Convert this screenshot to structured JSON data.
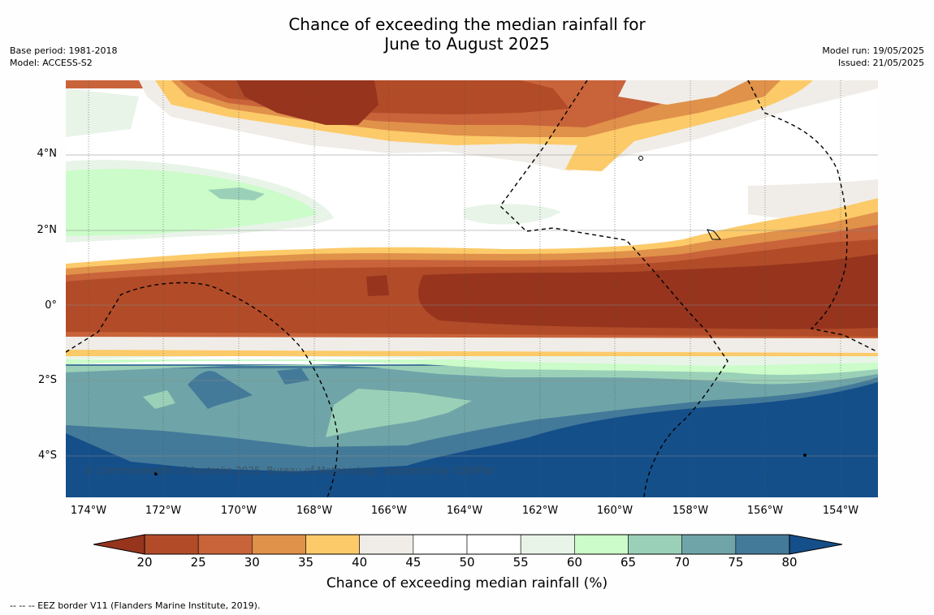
{
  "title": {
    "line1": "Chance of exceeding the median rainfall for",
    "line2": "June to August 2025"
  },
  "meta_left": {
    "base_period": "Base period: 1981-2018",
    "model": "Model: ACCESS-S2"
  },
  "meta_right": {
    "model_run": "Model run: 19/05/2025",
    "issued": "Issued: 21/05/2025"
  },
  "lat_labels": [
    "4°N",
    "2°N",
    "0°",
    "2°S",
    "4°S"
  ],
  "lon_labels": [
    "174°W",
    "172°W",
    "170°W",
    "168°W",
    "166°W",
    "164°W",
    "162°W",
    "160°W",
    "158°W",
    "156°W",
    "154°W"
  ],
  "copyright": "© Commonwealth of Australia 2025, Bureau of Meteorology, supported by COSPPac",
  "colorbar": {
    "ticks": [
      "20",
      "25",
      "30",
      "35",
      "40",
      "45",
      "50",
      "55",
      "60",
      "65",
      "70",
      "75",
      "80"
    ],
    "colors": [
      "#96341e",
      "#b24b28",
      "#c9633a",
      "#e0914a",
      "#fcca69",
      "#f0ede8",
      "#ffffff",
      "#ffffff",
      "#e8f4e8",
      "#cbfcc9",
      "#9bd0b8",
      "#6fa5a8",
      "#447a99",
      "#144f8a"
    ],
    "label": "Chance of exceeding median rainfall (%)"
  },
  "footer": "--  --  -- EEZ border V11 (Flanders Marine Institute, 2019)."
}
